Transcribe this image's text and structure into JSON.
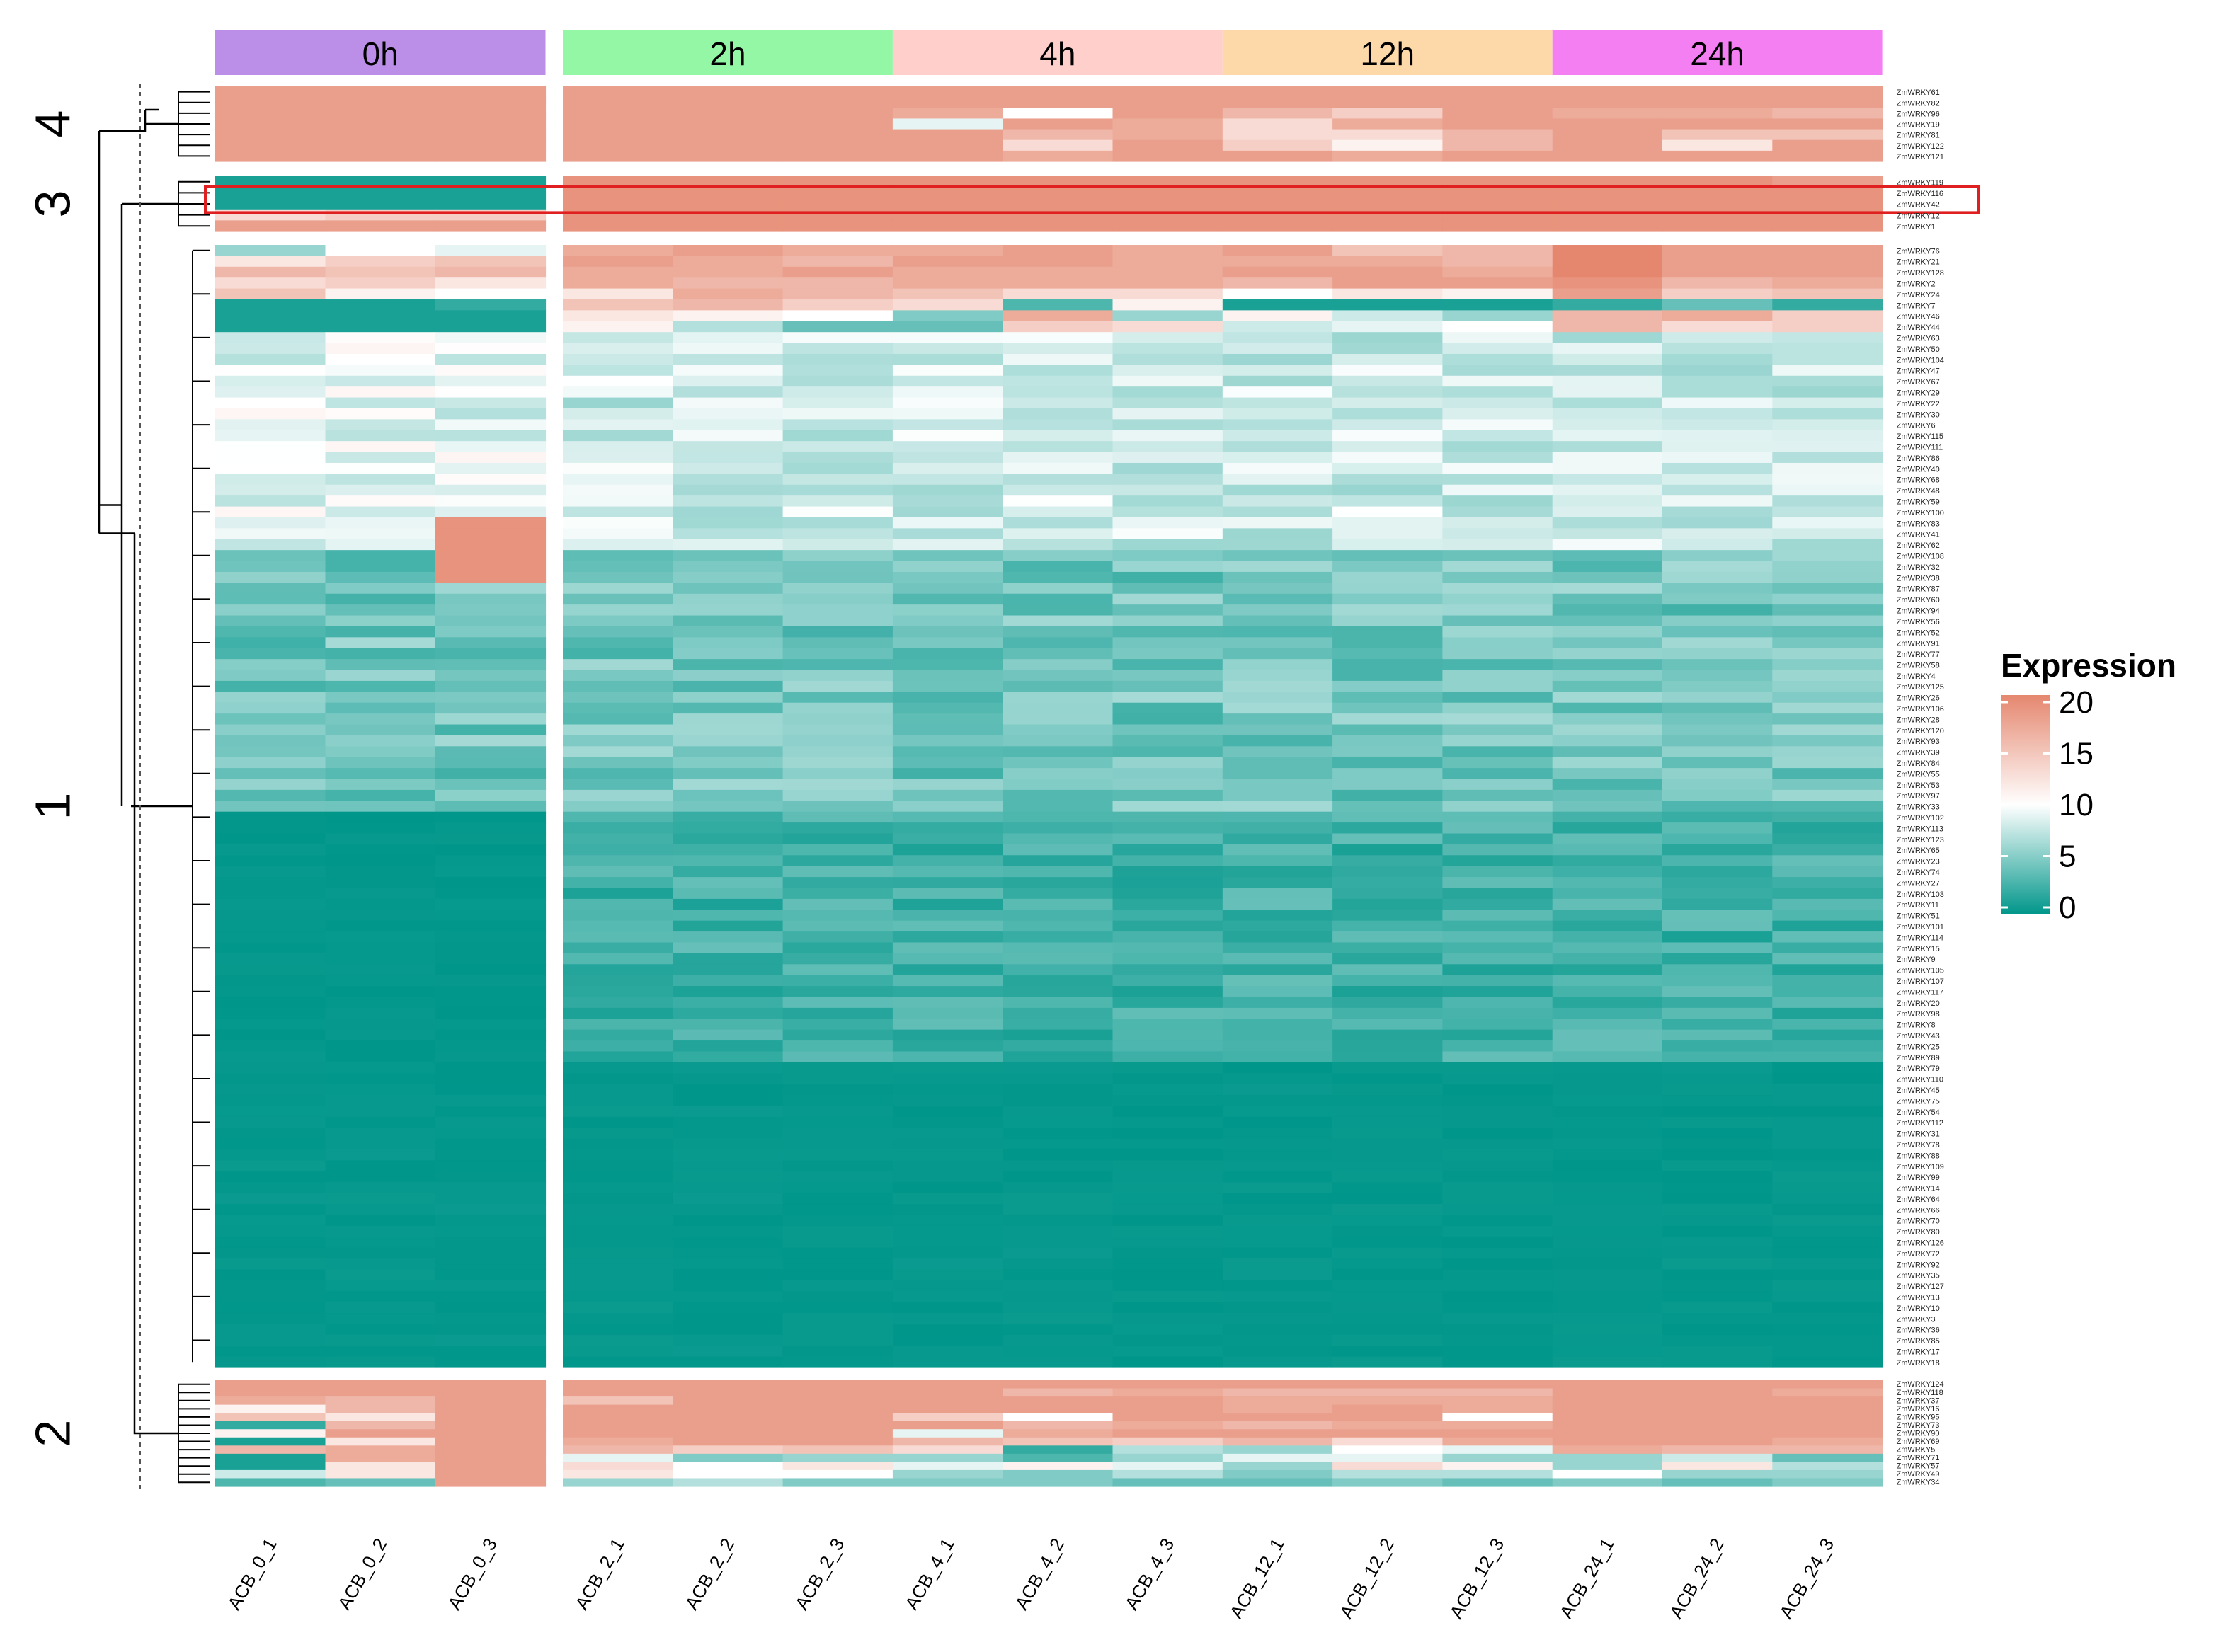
{
  "chart_data": {
    "type": "heatmap",
    "title": "",
    "legend": {
      "title": "Expression",
      "ticks": [
        "20",
        "15",
        "10",
        "5",
        "0"
      ],
      "range": [
        0,
        20
      ],
      "colors": {
        "low": "#00968a",
        "mid": "#ffffff",
        "high": "#e5876f"
      }
    },
    "groups": [
      {
        "label": "0h",
        "color": "#bb8ee8",
        "columns": [
          "ACB_0_1",
          "ACB_0_2",
          "ACB_0_3"
        ]
      },
      {
        "label": "2h",
        "color": "#93f7a6",
        "columns": [
          "ACB_2_1",
          "ACB_2_2",
          "ACB_2_3"
        ]
      },
      {
        "label": "4h",
        "color": "#ffcfcb",
        "columns": [
          "ACB_4_1",
          "ACB_4_2",
          "ACB_4_3"
        ]
      },
      {
        "label": "12h",
        "color": "#fdd9aa",
        "columns": [
          "ACB_12_1",
          "ACB_12_2",
          "ACB_12_3"
        ]
      },
      {
        "label": "24h",
        "color": "#f47ff2",
        "columns": [
          "ACB_24_1",
          "ACB_24_2",
          "ACB_24_3"
        ]
      }
    ],
    "clusters": [
      {
        "label": "4",
        "genes": [
          "ZmWRKY61",
          "ZmWRKY82",
          "ZmWRKY96",
          "ZmWRKY19",
          "ZmWRKY81",
          "ZmWRKY122",
          "ZmWRKY121"
        ]
      },
      {
        "label": "3",
        "highlight": true,
        "genes": [
          "ZmWRKY119",
          "ZmWRKY116",
          "ZmWRKY42",
          "ZmWRKY12",
          "ZmWRKY1"
        ]
      },
      {
        "label": "1",
        "genes": [
          "ZmWRKY76",
          "ZmWRKY21",
          "ZmWRKY128",
          "ZmWRKY2",
          "ZmWRKY24",
          "ZmWRKY7",
          "ZmWRKY46",
          "ZmWRKY44",
          "ZmWRKY63",
          "ZmWRKY50",
          "ZmWRKY104",
          "ZmWRKY47",
          "ZmWRKY67",
          "ZmWRKY29",
          "ZmWRKY22",
          "ZmWRKY30",
          "ZmWRKY6",
          "ZmWRKY115",
          "ZmWRKY111",
          "ZmWRKY86",
          "ZmWRKY40",
          "ZmWRKY68",
          "ZmWRKY48",
          "ZmWRKY59",
          "ZmWRKY100",
          "ZmWRKY83",
          "ZmWRKY41",
          "ZmWRKY62",
          "ZmWRKY108",
          "ZmWRKY32",
          "ZmWRKY38",
          "ZmWRKY87",
          "ZmWRKY60",
          "ZmWRKY94",
          "ZmWRKY56",
          "ZmWRKY52",
          "ZmWRKY91",
          "ZmWRKY77",
          "ZmWRKY58",
          "ZmWRKY4",
          "ZmWRKY125",
          "ZmWRKY26",
          "ZmWRKY106",
          "ZmWRKY28",
          "ZmWRKY120",
          "ZmWRKY93",
          "ZmWRKY39",
          "ZmWRKY84",
          "ZmWRKY55",
          "ZmWRKY53",
          "ZmWRKY97",
          "ZmWRKY33",
          "ZmWRKY102",
          "ZmWRKY113",
          "ZmWRKY123",
          "ZmWRKY65",
          "ZmWRKY23",
          "ZmWRKY74",
          "ZmWRKY27",
          "ZmWRKY103",
          "ZmWRKY11",
          "ZmWRKY51",
          "ZmWRKY101",
          "ZmWRKY114",
          "ZmWRKY15",
          "ZmWRKY9",
          "ZmWRKY105",
          "ZmWRKY107",
          "ZmWRKY117",
          "ZmWRKY20",
          "ZmWRKY98",
          "ZmWRKY8",
          "ZmWRKY43",
          "ZmWRKY25",
          "ZmWRKY89",
          "ZmWRKY79",
          "ZmWRKY110",
          "ZmWRKY45",
          "ZmWRKY75",
          "ZmWRKY54",
          "ZmWRKY112",
          "ZmWRKY31",
          "ZmWRKY78",
          "ZmWRKY88",
          "ZmWRKY109",
          "ZmWRKY99",
          "ZmWRKY14",
          "ZmWRKY64",
          "ZmWRKY66",
          "ZmWRKY70",
          "ZmWRKY80",
          "ZmWRKY126",
          "ZmWRKY72",
          "ZmWRKY92",
          "ZmWRKY35",
          "ZmWRKY127",
          "ZmWRKY13",
          "ZmWRKY10",
          "ZmWRKY3",
          "ZmWRKY36",
          "ZmWRKY85",
          "ZmWRKY17",
          "ZmWRKY18"
        ]
      },
      {
        "label": "2",
        "genes": [
          "ZmWRKY124",
          "ZmWRKY118",
          "ZmWRKY37",
          "ZmWRKY16",
          "ZmWRKY95",
          "ZmWRKY73",
          "ZmWRKY90",
          "ZmWRKY69",
          "ZmWRKY5",
          "ZmWRKY71",
          "ZmWRKY57",
          "ZmWRKY49",
          "ZmWRKY34"
        ]
      }
    ],
    "values": {
      "cluster4": [
        [
          18,
          18,
          18,
          18,
          18,
          18,
          18,
          18,
          18,
          18,
          18,
          18,
          18,
          18,
          18
        ],
        [
          18,
          18,
          18,
          18,
          18,
          18,
          18,
          18,
          18,
          18,
          18,
          18,
          18,
          18,
          18
        ],
        [
          18,
          18,
          18,
          18,
          18,
          18,
          17,
          10,
          18,
          16,
          14,
          18,
          17,
          17,
          16
        ],
        [
          18,
          18,
          18,
          18,
          18,
          18,
          9,
          18,
          17,
          13,
          17,
          18,
          18,
          18,
          18
        ],
        [
          18,
          18,
          18,
          18,
          18,
          18,
          18,
          16,
          17,
          13,
          13,
          16,
          18,
          15,
          15
        ],
        [
          18,
          18,
          18,
          18,
          18,
          18,
          18,
          13,
          18,
          14,
          11,
          16,
          18,
          12,
          18
        ],
        [
          18,
          18,
          18,
          18,
          18,
          18,
          18,
          17,
          18,
          18,
          17,
          18,
          18,
          18,
          18
        ]
      ],
      "cluster3": [
        [
          1,
          1,
          1,
          19,
          19,
          19,
          19,
          19,
          19,
          19,
          19,
          19,
          19,
          19,
          18
        ],
        [
          1,
          1,
          1,
          19,
          19,
          19,
          19,
          19,
          19,
          19,
          19,
          19,
          19,
          19,
          19
        ],
        [
          1,
          1,
          1,
          19,
          19,
          19,
          19,
          19,
          19,
          19,
          19,
          19,
          19,
          19,
          19
        ],
        [
          13,
          14,
          14,
          19,
          19,
          19,
          19,
          19,
          19,
          19,
          19,
          19,
          19,
          19,
          19
        ],
        [
          18,
          18,
          18,
          19,
          19,
          19,
          19,
          19,
          19,
          19,
          19,
          19,
          19,
          19,
          19
        ]
      ],
      "cluster1_head": [
        [
          6,
          10,
          9,
          17,
          18,
          17,
          17,
          18,
          17,
          18,
          15,
          16,
          20,
          18,
          18
        ],
        [
          12,
          14,
          15,
          18,
          17,
          16,
          18,
          18,
          17,
          17,
          17,
          16,
          20,
          18,
          18
        ],
        [
          16,
          15,
          16,
          17,
          17,
          18,
          17,
          17,
          17,
          18,
          18,
          17,
          20,
          18,
          18
        ],
        [
          13,
          14,
          12,
          17,
          16,
          16,
          17,
          17,
          17,
          16,
          18,
          18,
          19,
          16,
          17
        ],
        [
          15,
          11,
          10,
          12,
          17,
          16,
          15,
          13,
          13,
          10,
          12,
          11,
          18,
          14,
          15
        ],
        [
          1,
          1,
          2,
          15,
          16,
          14,
          13,
          3,
          11,
          1,
          1,
          1,
          2,
          4,
          2
        ],
        [
          1,
          1,
          1,
          12,
          11,
          10,
          5,
          17,
          6,
          11,
          8,
          6,
          16,
          17,
          14
        ],
        [
          1,
          1,
          1,
          11,
          7,
          4,
          4,
          14,
          13,
          8,
          9,
          10,
          16,
          13,
          14
        ]
      ],
      "cluster2": [
        [
          18,
          18,
          18,
          18,
          18,
          18,
          18,
          18,
          18,
          18,
          18,
          18,
          18,
          18,
          18
        ],
        [
          18,
          18,
          18,
          18,
          18,
          18,
          18,
          16,
          17,
          16,
          16,
          16,
          18,
          18,
          17
        ],
        [
          17,
          16,
          18,
          15,
          18,
          18,
          18,
          18,
          18,
          17,
          17,
          17,
          18,
          18,
          18
        ],
        [
          11,
          16,
          18,
          18,
          18,
          18,
          18,
          18,
          18,
          17,
          18,
          17,
          18,
          18,
          18
        ],
        [
          15,
          12,
          18,
          18,
          18,
          18,
          14,
          10,
          18,
          18,
          18,
          10,
          18,
          18,
          18
        ],
        [
          2,
          16,
          18,
          18,
          18,
          18,
          18,
          16,
          17,
          16,
          17,
          17,
          18,
          18,
          18
        ],
        [
          11,
          18,
          18,
          18,
          18,
          18,
          9,
          17,
          18,
          18,
          18,
          18,
          18,
          18,
          18
        ],
        [
          1,
          12,
          18,
          17,
          18,
          18,
          16,
          15,
          14,
          16,
          13,
          17,
          18,
          18,
          17
        ],
        [
          16,
          17,
          18,
          16,
          14,
          15,
          13,
          2,
          7,
          6,
          10,
          9,
          17,
          16,
          16
        ],
        [
          1,
          17,
          18,
          9,
          5,
          6,
          6,
          3,
          6,
          9,
          9,
          6,
          6,
          8,
          4
        ],
        [
          1,
          12,
          18,
          13,
          10,
          12,
          9,
          11,
          9,
          6,
          13,
          11,
          6,
          12,
          7
        ],
        [
          8,
          12,
          18,
          12,
          10,
          10,
          6,
          5,
          7,
          5,
          7,
          7,
          10,
          6,
          6
        ],
        [
          3,
          4,
          18,
          6,
          7,
          5,
          5,
          5,
          4,
          4,
          5,
          4,
          5,
          4,
          5
        ]
      ]
    }
  }
}
